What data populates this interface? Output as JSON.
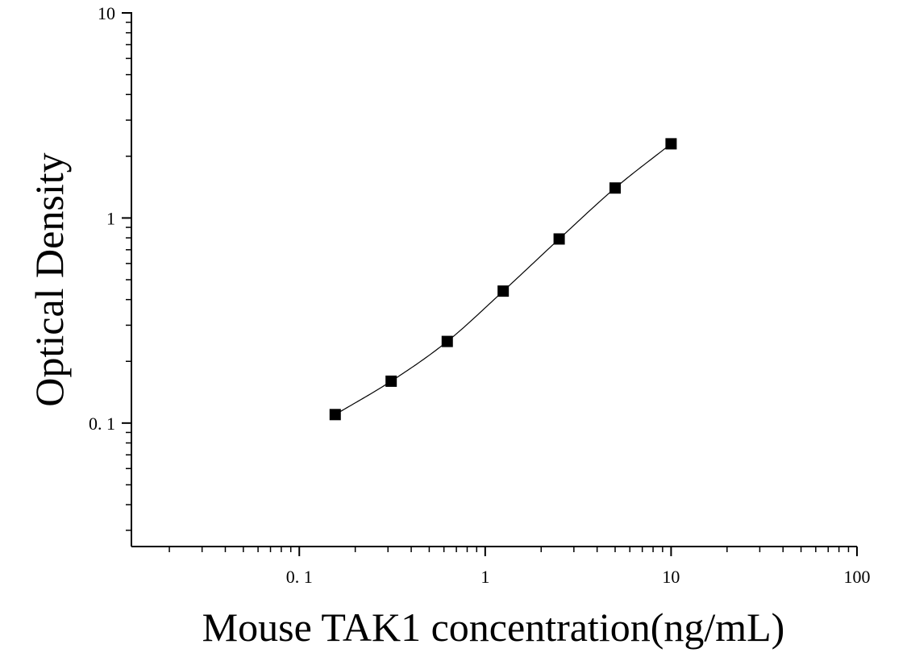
{
  "chart_data": {
    "type": "scatter",
    "title": "",
    "xlabel": "Mouse TAK1 concentration(ng/mL)",
    "ylabel": "Optical Density",
    "x_scale": "log",
    "y_scale": "log",
    "xlim": [
      0.0125,
      100
    ],
    "ylim": [
      0.025,
      10
    ],
    "x_ticks": [
      {
        "value": 0.1,
        "label": "0. 1"
      },
      {
        "value": 1,
        "label": "1"
      },
      {
        "value": 10,
        "label": "10"
      },
      {
        "value": 100,
        "label": "100"
      }
    ],
    "y_ticks": [
      {
        "value": 0.1,
        "label": "0. 1"
      },
      {
        "value": 1,
        "label": "1"
      },
      {
        "value": 10,
        "label": "10"
      }
    ],
    "grid": false,
    "legend": "none",
    "marker": "square",
    "fit_line": "smooth curve through points",
    "series": [
      {
        "x": [
          0.156,
          0.312,
          0.625,
          1.25,
          2.5,
          5,
          10
        ],
        "y": [
          0.11,
          0.16,
          0.25,
          0.44,
          0.79,
          1.4,
          2.3
        ]
      }
    ],
    "colors": {
      "points": "#000000",
      "line": "#000000",
      "axes": "#000000"
    }
  }
}
